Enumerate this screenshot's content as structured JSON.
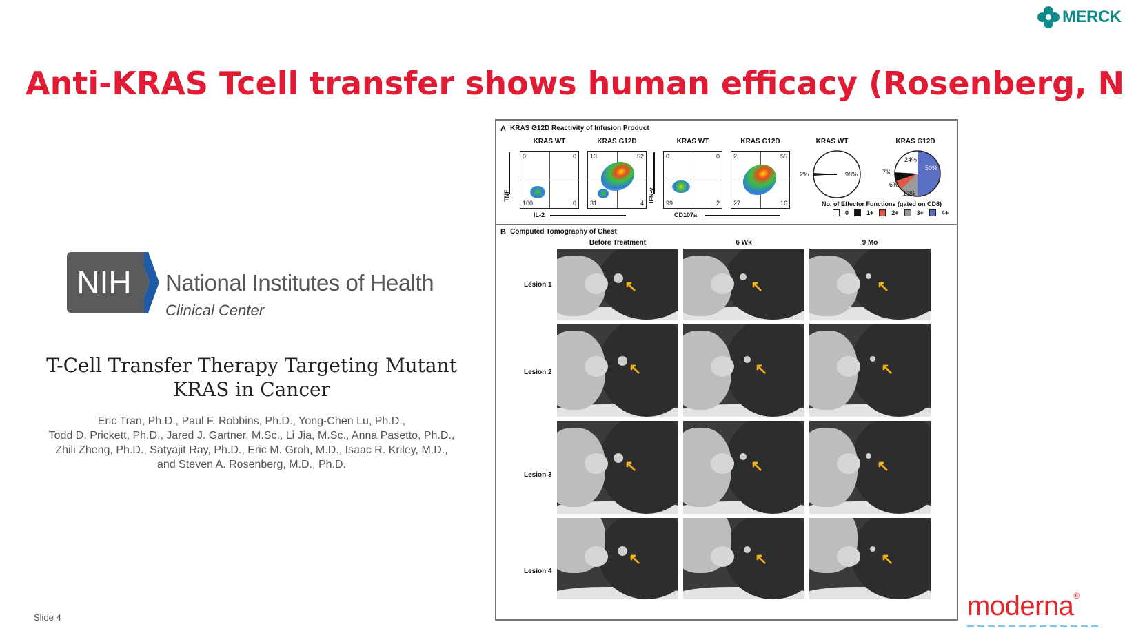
{
  "brand": {
    "merck_label": "MERCK",
    "merck_color": "#0e8a8a",
    "moderna_label": "moderna",
    "moderna_color": "#e0252b"
  },
  "title": "Anti-KRAS Tcell transfer shows human efficacy (Rosenberg, NIH)",
  "title_color": "#e01b33",
  "nih": {
    "logo_text": "NIH",
    "name": "National Institutes of Health",
    "subtitle": "Clinical Center"
  },
  "paper": {
    "title_line1": "T-Cell Transfer Therapy Targeting Mutant",
    "title_line2": "KRAS in Cancer",
    "authors_line1": "Eric Tran, Ph.D., Paul F. Robbins, Ph.D., Yong-Chen Lu, Ph.D.,",
    "authors_line2": "Todd D. Prickett, Ph.D., Jared J. Gartner, M.Sc., Li Jia, M.Sc., Anna Pasetto, Ph.D.,",
    "authors_line3": "Zhili Zheng, Ph.D., Satyajit Ray, Ph.D., Eric M. Groh, M.D., Isaac R. Kriley, M.D.,",
    "authors_line4": "and Steven A. Rosenberg, M.D., Ph.D."
  },
  "slide_label": "Slide 4",
  "figure": {
    "panel_a": {
      "label": "A",
      "title": "KRAS G12D Reactivity of Infusion Product",
      "plots": [
        {
          "header": "KRAS WT",
          "ul": "0",
          "ur": "0",
          "ll": "100",
          "lr": "0"
        },
        {
          "header": "KRAS G12D",
          "ul": "13",
          "ur": "52",
          "ll": "31",
          "lr": "4"
        },
        {
          "header": "KRAS WT",
          "ul": "0",
          "ur": "0",
          "ll": "99",
          "lr": "2"
        },
        {
          "header": "KRAS G12D",
          "ul": "2",
          "ur": "55",
          "ll": "27",
          "lr": "16"
        }
      ],
      "axis_tnf": "TNF",
      "axis_il2": "IL-2",
      "axis_ifn": "IFN-γ",
      "axis_cd107a": "CD107a",
      "pies": [
        {
          "header": "KRAS WT",
          "labels": [
            "2%",
            "98%"
          ]
        },
        {
          "header": "KRAS G12D",
          "labels": [
            "24%",
            "7%",
            "6%",
            "13%",
            "50%"
          ]
        }
      ],
      "legend_title": "No. of Effector Functions (gated on CD8)",
      "legend_items": [
        "0",
        "1+",
        "2+",
        "3+",
        "4+"
      ],
      "legend_colors": [
        "#ffffff",
        "#111111",
        "#e05a4a",
        "#9a9a9a",
        "#5b6fc4"
      ]
    },
    "panel_b": {
      "label": "B",
      "title": "Computed Tomography of Chest",
      "columns": [
        "Before Treatment",
        "6 Wk",
        "9 Mo"
      ],
      "rows": [
        "Lesion 1",
        "Lesion 2",
        "Lesion 3",
        "Lesion 4"
      ]
    }
  }
}
